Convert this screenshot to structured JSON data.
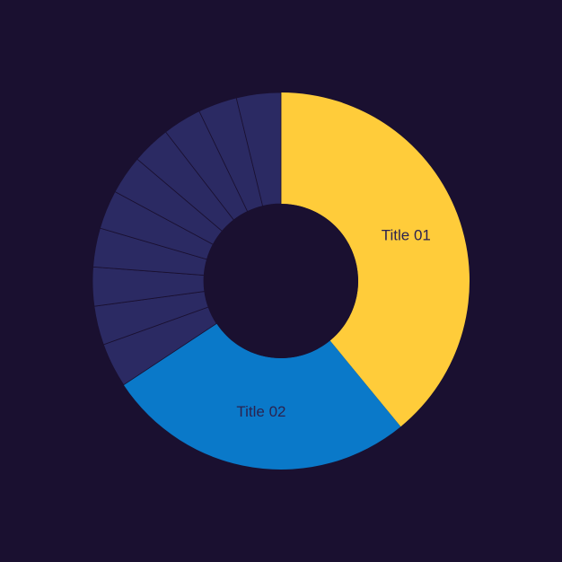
{
  "page": {
    "background": "#1a1030"
  },
  "chart_data": {
    "type": "pie",
    "variant": "donut",
    "title": "",
    "start_angle_deg": 0,
    "direction": "clockwise",
    "slices": [
      {
        "label": "Title 01",
        "value": 41,
        "color": "#ffcc3a",
        "show_label": true
      },
      {
        "label": "Title 02",
        "value": 28,
        "color": "#0a79c9",
        "show_label": true
      },
      {
        "label": "",
        "value": 4,
        "color": "#2b2a63",
        "show_label": false
      },
      {
        "label": "",
        "value": 3.5,
        "color": "#2b2a63",
        "show_label": false
      },
      {
        "label": "",
        "value": 3.5,
        "color": "#2b2a63",
        "show_label": false
      },
      {
        "label": "",
        "value": 3.5,
        "color": "#2b2a63",
        "show_label": false
      },
      {
        "label": "",
        "value": 3.5,
        "color": "#2b2a63",
        "show_label": false
      },
      {
        "label": "",
        "value": 3.5,
        "color": "#2b2a63",
        "show_label": false
      },
      {
        "label": "",
        "value": 3.5,
        "color": "#2b2a63",
        "show_label": false
      },
      {
        "label": "",
        "value": 3.5,
        "color": "#2b2a63",
        "show_label": false
      },
      {
        "label": "",
        "value": 3.5,
        "color": "#2b2a63",
        "show_label": false
      },
      {
        "label": "",
        "value": 4,
        "color": "#2b2a63",
        "show_label": false
      }
    ],
    "divider_color": "#1a1030",
    "label_color": "#2b2350"
  }
}
